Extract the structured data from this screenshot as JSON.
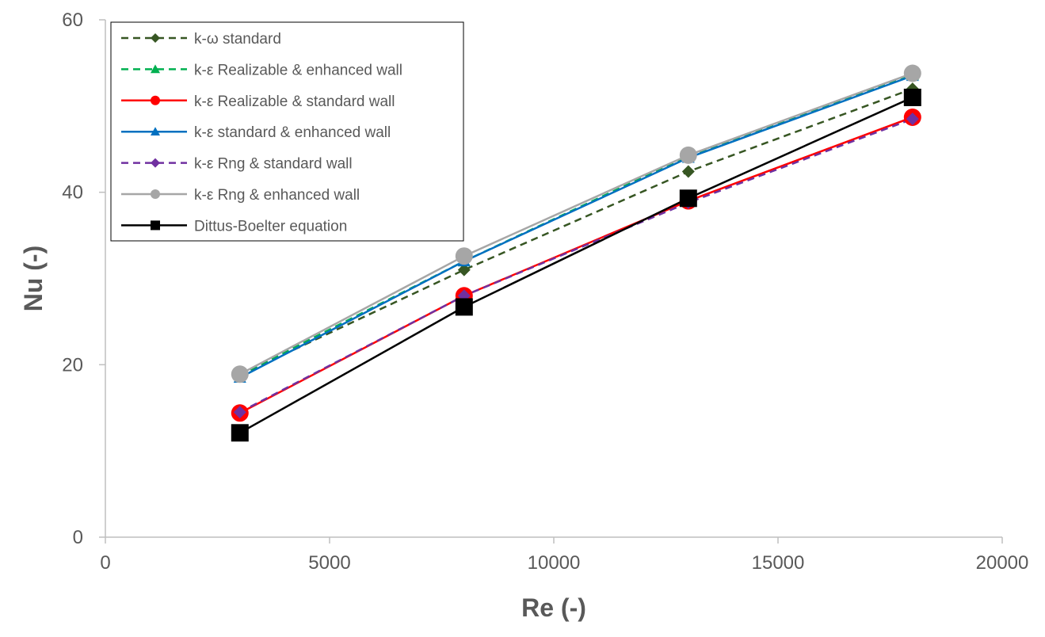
{
  "chart_data": {
    "type": "line",
    "title": "",
    "xlabel": "Re (-)",
    "ylabel": "Nu (-)",
    "xlim": [
      0,
      20000
    ],
    "ylim": [
      0,
      60
    ],
    "xticks": [
      0,
      5000,
      10000,
      15000,
      20000
    ],
    "yticks": [
      0,
      20,
      40,
      60
    ],
    "grid": false,
    "legend_position": "top-left",
    "x": [
      3000,
      8000,
      13000,
      18000
    ],
    "series": [
      {
        "name": "k-ω standard",
        "values": [
          18.8,
          31.0,
          42.4,
          52.0
        ],
        "color": "#375623",
        "dash": "dashed",
        "marker": "diamond"
      },
      {
        "name": "k-ε Realizable & enhanced wall",
        "values": [
          18.8,
          32.0,
          44.2,
          53.6
        ],
        "color": "#00B050",
        "dash": "dashed",
        "marker": "triangle"
      },
      {
        "name": "k-ε Realizable & standard wall",
        "values": [
          14.4,
          28.0,
          39.0,
          48.7
        ],
        "color": "#FF0000",
        "dash": "solid",
        "marker": "circle"
      },
      {
        "name": "k-ε standard & enhanced wall",
        "values": [
          18.5,
          32.0,
          44.0,
          53.5
        ],
        "color": "#0070C0",
        "dash": "solid",
        "marker": "triangle"
      },
      {
        "name": "k-ε Rng & standard wall",
        "values": [
          14.5,
          28.0,
          38.8,
          48.5
        ],
        "color": "#7030A0",
        "dash": "dashed",
        "marker": "diamond"
      },
      {
        "name": "k-ε Rng & enhanced wall",
        "values": [
          18.9,
          32.6,
          44.3,
          53.8
        ],
        "color": "#A6A6A6",
        "dash": "solid",
        "marker": "circle"
      },
      {
        "name": "Dittus-Boelter equation",
        "values": [
          12.1,
          26.7,
          39.3,
          51.0
        ],
        "color": "#000000",
        "dash": "solid",
        "marker": "square"
      }
    ]
  }
}
